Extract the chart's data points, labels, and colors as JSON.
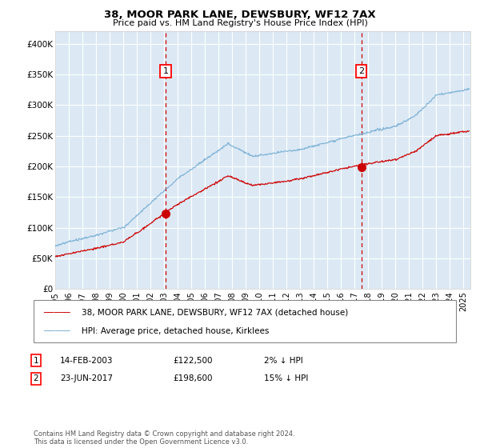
{
  "title": "38, MOOR PARK LANE, DEWSBURY, WF12 7AX",
  "subtitle": "Price paid vs. HM Land Registry's House Price Index (HPI)",
  "legend_label_red": "38, MOOR PARK LANE, DEWSBURY, WF12 7AX (detached house)",
  "legend_label_blue": "HPI: Average price, detached house, Kirklees",
  "annotation1_date": "14-FEB-2003",
  "annotation1_price": "£122,500",
  "annotation1_hpi": "2% ↓ HPI",
  "annotation1_year": 2003.12,
  "annotation1_value": 122500,
  "annotation2_date": "23-JUN-2017",
  "annotation2_price": "£198,600",
  "annotation2_hpi": "15% ↓ HPI",
  "annotation2_year": 2017.48,
  "annotation2_value": 198600,
  "footer": "Contains HM Land Registry data © Crown copyright and database right 2024.\nThis data is licensed under the Open Government Licence v3.0.",
  "ylim": [
    0,
    420000
  ],
  "yticks": [
    0,
    50000,
    100000,
    150000,
    200000,
    250000,
    300000,
    350000,
    400000
  ],
  "xlim_start": 1995.0,
  "xlim_end": 2025.5,
  "xticks": [
    1995,
    1996,
    1997,
    1998,
    1999,
    2000,
    2001,
    2002,
    2003,
    2004,
    2005,
    2006,
    2007,
    2008,
    2009,
    2010,
    2011,
    2012,
    2013,
    2014,
    2015,
    2016,
    2017,
    2018,
    2019,
    2020,
    2021,
    2022,
    2023,
    2024,
    2025
  ],
  "plot_bg": "#dce9f5",
  "grid_color": "#ffffff",
  "red_color": "#cc0000",
  "blue_color": "#7ab0d4"
}
